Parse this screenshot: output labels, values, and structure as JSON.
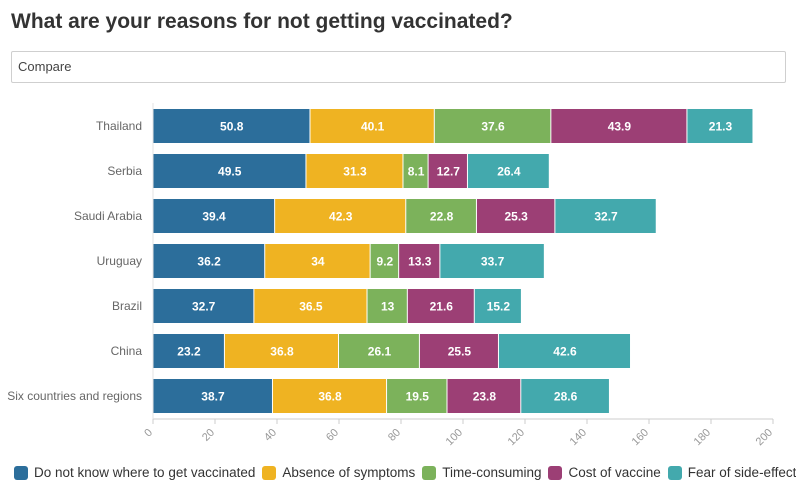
{
  "title": "What are your reasons for not getting vaccinated?",
  "compare": {
    "value": "Compare"
  },
  "chart_data": {
    "type": "bar",
    "orientation": "horizontal",
    "stacked": true,
    "categories": [
      "Thailand",
      "Serbia",
      "Saudi Arabia",
      "Uruguay",
      "Brazil",
      "China",
      "Six countries and regions"
    ],
    "series": [
      {
        "name": "Do not know where to get vaccinated",
        "color": "#2c6e9b",
        "values": [
          50.8,
          49.5,
          39.4,
          36.2,
          32.7,
          23.2,
          38.7
        ]
      },
      {
        "name": "Absence of symptoms",
        "color": "#efb322",
        "values": [
          40.1,
          31.3,
          42.3,
          34,
          36.5,
          36.8,
          36.8
        ]
      },
      {
        "name": "Time-consuming",
        "color": "#7cb25b",
        "values": [
          37.6,
          8.1,
          22.8,
          9.2,
          13,
          26.1,
          19.5
        ]
      },
      {
        "name": "Cost of vaccine",
        "color": "#9c3f75",
        "values": [
          43.9,
          12.7,
          25.3,
          13.3,
          21.6,
          25.5,
          23.8
        ]
      },
      {
        "name": "Fear of side-effects",
        "color": "#43a9ad",
        "values": [
          21.3,
          26.4,
          32.7,
          33.7,
          15.2,
          42.6,
          28.6
        ]
      }
    ],
    "xlim": [
      0,
      200
    ],
    "xticks": [
      "0",
      "20",
      "40",
      "60",
      "80",
      "100",
      "120",
      "140",
      "160",
      "180",
      "200"
    ],
    "xlabel": "",
    "ylabel": "",
    "grid": false,
    "legend_position": "bottom-left"
  }
}
